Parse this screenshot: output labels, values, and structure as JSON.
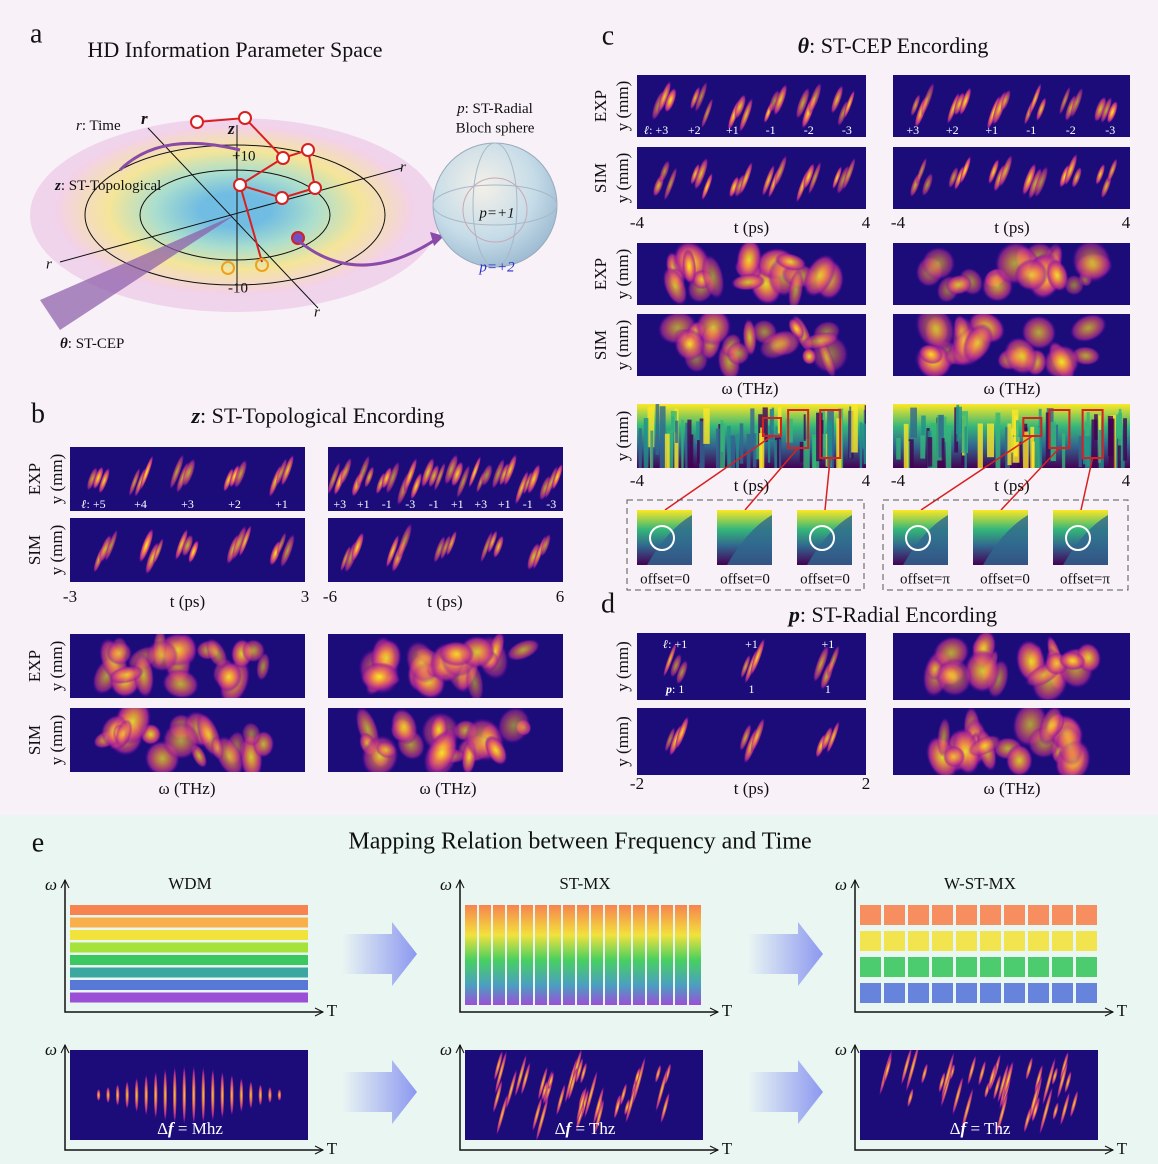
{
  "panel_a": {
    "label": "a",
    "title": "HD Information Parameter Space",
    "time_symbol": "r",
    "time_text": ": Time",
    "r_labels": [
      "r",
      "r",
      "r",
      "r"
    ],
    "z_symbol": "z",
    "z_top": "+10",
    "z_bottom": "-10",
    "topological_symbol": "z",
    "topological_text": ": ST-Topological",
    "cep_symbol": "θ",
    "cep_text": ": ST-CEP",
    "radial_symbol": "p",
    "radial_text": ": ST-Radial",
    "bloch": "Bloch sphere",
    "p_plus1": "p=+1",
    "p_plus2": "p=+2"
  },
  "panel_b": {
    "label": "b",
    "title_symbol": "z",
    "title_text": ": ST-Topological Encording",
    "row_names": [
      "EXP",
      "SIM",
      "EXP",
      "SIM"
    ],
    "row_axes": [
      "y (mm)",
      "y (mm)",
      "y (mm)",
      "y (mm)"
    ],
    "charge_symbol": "ℓ",
    "charges_left": [
      ": +5",
      "+4",
      "+3",
      "+2",
      "+1"
    ],
    "charges_right": [
      "+3",
      "+1",
      "-1",
      "-3",
      "-1",
      "+1",
      "+3",
      "+1",
      "-1",
      "-3"
    ],
    "t_axis_left": [
      "-3",
      "t (ps)",
      "3"
    ],
    "t_axis_right": [
      "-6",
      "t (ps)",
      "6"
    ],
    "freq_axes": [
      "ω (THz)",
      "ω (THz)"
    ]
  },
  "panel_c": {
    "label": "c",
    "title_symbol": "θ",
    "title_text": ": ST-CEP Encording",
    "row_names": [
      "EXP",
      "SIM",
      "EXP",
      "SIM"
    ],
    "row_axes": [
      "y (mm)",
      "y (mm)",
      "y (mm)",
      "y (mm)"
    ],
    "phase_axis": "y (mm)",
    "charge_symbol": "ℓ",
    "charges_left": [
      ": +3",
      "+2",
      "+1",
      "-1",
      "-2",
      "-3"
    ],
    "charges_right": [
      "+3",
      "+2",
      "+1",
      "-1",
      "-2",
      "-3"
    ],
    "t_axis_left": [
      "-4",
      "t (ps)",
      "4"
    ],
    "t_axis_right": [
      "-4",
      "t (ps)",
      "4"
    ],
    "freq_axes": [
      "ω (THz)",
      "ω (THz)"
    ],
    "phase_t_axis_left": [
      "-4",
      "t (ps)",
      "4"
    ],
    "phase_t_axis_right": [
      "-4",
      "t (ps)",
      "4"
    ],
    "offsets": [
      "offset=0",
      "offset=0",
      "offset=0",
      "offset=π",
      "offset=0",
      "offset=π"
    ]
  },
  "panel_d": {
    "label": "d",
    "title_symbol": "p",
    "title_text": ": ST-Radial Encording",
    "row_axes": [
      "y (mm)",
      "y (mm)"
    ],
    "charge_symbol": "ℓ",
    "charges": [
      ": +1",
      "+1",
      "+1"
    ],
    "radial_symbol": "p",
    "radial_orders": [
      ": 1",
      "1",
      "1"
    ],
    "t_axis": [
      "-2",
      "t (ps)",
      "2"
    ],
    "freq_axis": "ω (THz)"
  },
  "panel_e": {
    "label": "e",
    "title": "Mapping Relation between Frequency and Time",
    "columns": [
      {
        "name": "WDM",
        "top_y": "ω",
        "top_x": "T",
        "bottom_y": "ω",
        "bottom_x": "T",
        "delta": "Δ",
        "var": "f",
        "rest": " = Mhz"
      },
      {
        "name": "ST-MX",
        "top_y": "ω",
        "top_x": "T",
        "bottom_y": "ω",
        "bottom_x": "T",
        "delta": "Δ",
        "var": "f",
        "rest": " = Thz"
      },
      {
        "name": "W-ST-MX",
        "top_y": "ω",
        "top_x": "T",
        "bottom_y": "ω",
        "bottom_x": "T",
        "delta": "Δ",
        "var": "f",
        "rest": " = Thz"
      }
    ]
  }
}
